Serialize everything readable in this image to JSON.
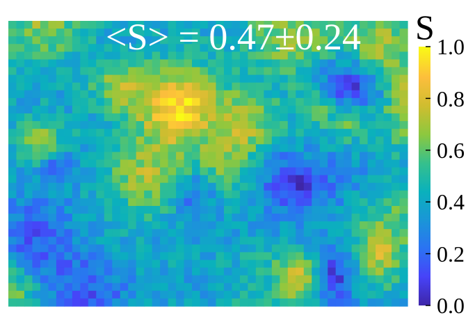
{
  "chart_data": {
    "type": "heatmap",
    "annotation": "<S> = 0.47±0.24",
    "colorbar": {
      "title": "S",
      "range": [
        0.0,
        1.0
      ],
      "ticks": [
        "0.0",
        "0.2",
        "0.4",
        "0.6",
        "0.8",
        "1.0"
      ],
      "colormap": "parula"
    },
    "grid": {
      "cols": 50,
      "rows": 37
    },
    "mean": 0.47,
    "std": 0.24
  },
  "colors": {
    "parula": [
      "#3e26a8",
      "#4743f8",
      "#2b73f3",
      "#1a96d7",
      "#0ab1bc",
      "#36c08c",
      "#8cc83f",
      "#cfbd2f",
      "#fcbe3c",
      "#f9fb15"
    ]
  }
}
